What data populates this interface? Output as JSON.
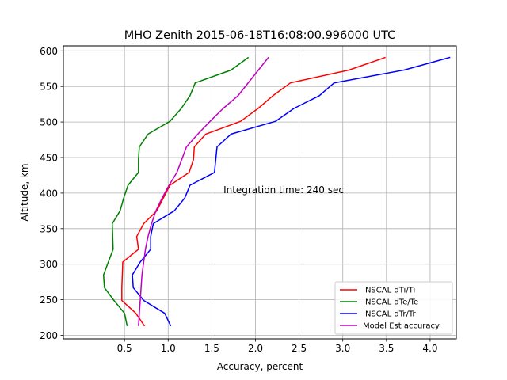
{
  "chart_data": {
    "type": "line",
    "title": "MHO Zenith 2015-06-18T16:08:00.996000 UTC",
    "xlabel": "Accuracy, percent",
    "ylabel": "Altitude, km",
    "xlim": [
      -0.2,
      4.3
    ],
    "ylim": [
      195,
      607
    ],
    "xticks": [
      0.5,
      1.0,
      1.5,
      2.0,
      2.5,
      3.0,
      3.5,
      4.0
    ],
    "xtick_labels": [
      "0.5",
      "1.0",
      "1.5",
      "2.0",
      "2.5",
      "3.0",
      "3.5",
      "4.0"
    ],
    "yticks": [
      200,
      250,
      300,
      350,
      400,
      450,
      500,
      550,
      600
    ],
    "ytick_labels": [
      "200",
      "250",
      "300",
      "350",
      "400",
      "450",
      "500",
      "550",
      "600"
    ],
    "grid": true,
    "legend_position": "lower-right",
    "annotation": "Integration time: 240 sec",
    "series": [
      {
        "name": "INSCAL dTi/Ti",
        "color": "#ff0000",
        "x": [
          0.73,
          0.63,
          0.47,
          0.47,
          0.48,
          0.66,
          0.64,
          0.72,
          0.87,
          1.02,
          1.24,
          1.29,
          1.3,
          1.43,
          1.83,
          2.03,
          2.2,
          2.4,
          3.07,
          3.49
        ],
        "y": [
          213,
          231,
          249,
          267,
          303,
          321,
          339,
          357,
          375,
          411,
          429,
          447,
          465,
          483,
          501,
          519,
          537,
          555,
          573,
          591
        ]
      },
      {
        "name": "INSCAL dTe/Te",
        "color": "#008000",
        "x": [
          0.53,
          0.5,
          0.38,
          0.27,
          0.26,
          0.37,
          0.36,
          0.45,
          0.49,
          0.54,
          0.66,
          0.66,
          0.67,
          0.77,
          1.02,
          1.15,
          1.25,
          1.31,
          1.72,
          1.92
        ],
        "y": [
          213,
          231,
          249,
          267,
          285,
          321,
          357,
          375,
          393,
          411,
          429,
          447,
          465,
          483,
          501,
          519,
          537,
          555,
          573,
          591
        ]
      },
      {
        "name": "INSCAL dTr/Tr",
        "color": "#0000ff",
        "x": [
          1.03,
          0.96,
          0.72,
          0.6,
          0.59,
          0.68,
          0.8,
          0.8,
          0.83,
          1.07,
          1.19,
          1.25,
          1.53,
          1.56,
          1.72,
          2.23,
          2.44,
          2.73,
          2.9,
          3.7,
          4.23
        ],
        "y": [
          213,
          231,
          249,
          267,
          285,
          303,
          321,
          339,
          357,
          375,
          393,
          411,
          429,
          465,
          483,
          501,
          519,
          537,
          555,
          573,
          591
        ]
      },
      {
        "name": "Model Est accuracy",
        "color": "#bf00bf",
        "x": [
          0.66,
          0.67,
          0.68,
          0.69,
          0.7,
          0.72,
          0.74,
          0.77,
          0.81,
          0.86,
          0.93,
          1.01,
          1.1,
          1.21,
          1.34,
          1.48,
          1.63,
          1.8,
          2.15
        ],
        "y": [
          213,
          231,
          249,
          267,
          285,
          303,
          321,
          339,
          357,
          375,
          393,
          411,
          429,
          465,
          483,
          501,
          519,
          537,
          591
        ]
      }
    ]
  }
}
